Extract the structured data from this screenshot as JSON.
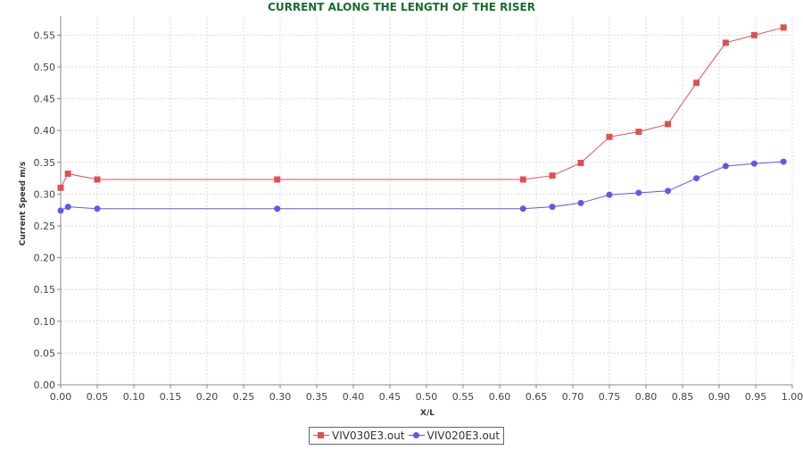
{
  "chart_data": {
    "type": "line",
    "title": "CURRENT ALONG THE LENGTH OF THE RISER",
    "xlabel": "X/L",
    "ylabel": "Current Speed m/s",
    "xlim": [
      0.0,
      1.0
    ],
    "ylim": [
      0.0,
      0.58
    ],
    "x_ticks": [
      "0.00",
      "0.05",
      "0.10",
      "0.15",
      "0.20",
      "0.25",
      "0.30",
      "0.35",
      "0.40",
      "0.45",
      "0.50",
      "0.55",
      "0.60",
      "0.65",
      "0.70",
      "0.75",
      "0.80",
      "0.85",
      "0.90",
      "0.95",
      "1.00"
    ],
    "y_ticks": [
      "0.00",
      "0.05",
      "0.10",
      "0.15",
      "0.20",
      "0.25",
      "0.30",
      "0.35",
      "0.40",
      "0.45",
      "0.50",
      "0.55"
    ],
    "grid": true,
    "legend_position": "bottom",
    "series": [
      {
        "name": "VIV030E3.out",
        "color": "#e05050",
        "marker": "square",
        "x": [
          0.0,
          0.01,
          0.05,
          0.296,
          0.632,
          0.672,
          0.711,
          0.75,
          0.79,
          0.83,
          0.869,
          0.909,
          0.948,
          0.988
        ],
        "y": [
          0.31,
          0.332,
          0.323,
          0.323,
          0.323,
          0.329,
          0.349,
          0.39,
          0.398,
          0.41,
          0.475,
          0.538,
          0.55,
          0.562
        ]
      },
      {
        "name": "VIV020E3.out",
        "color": "#5a5af0",
        "marker": "circle",
        "x": [
          0.0,
          0.01,
          0.05,
          0.296,
          0.632,
          0.672,
          0.711,
          0.75,
          0.79,
          0.83,
          0.869,
          0.909,
          0.948,
          0.988
        ],
        "y": [
          0.274,
          0.28,
          0.277,
          0.277,
          0.277,
          0.28,
          0.286,
          0.299,
          0.302,
          0.305,
          0.325,
          0.344,
          0.348,
          0.351
        ]
      }
    ]
  },
  "colors": {
    "title": "#1a6b30",
    "grid": "#d8d8d8",
    "axis": "#888888"
  }
}
